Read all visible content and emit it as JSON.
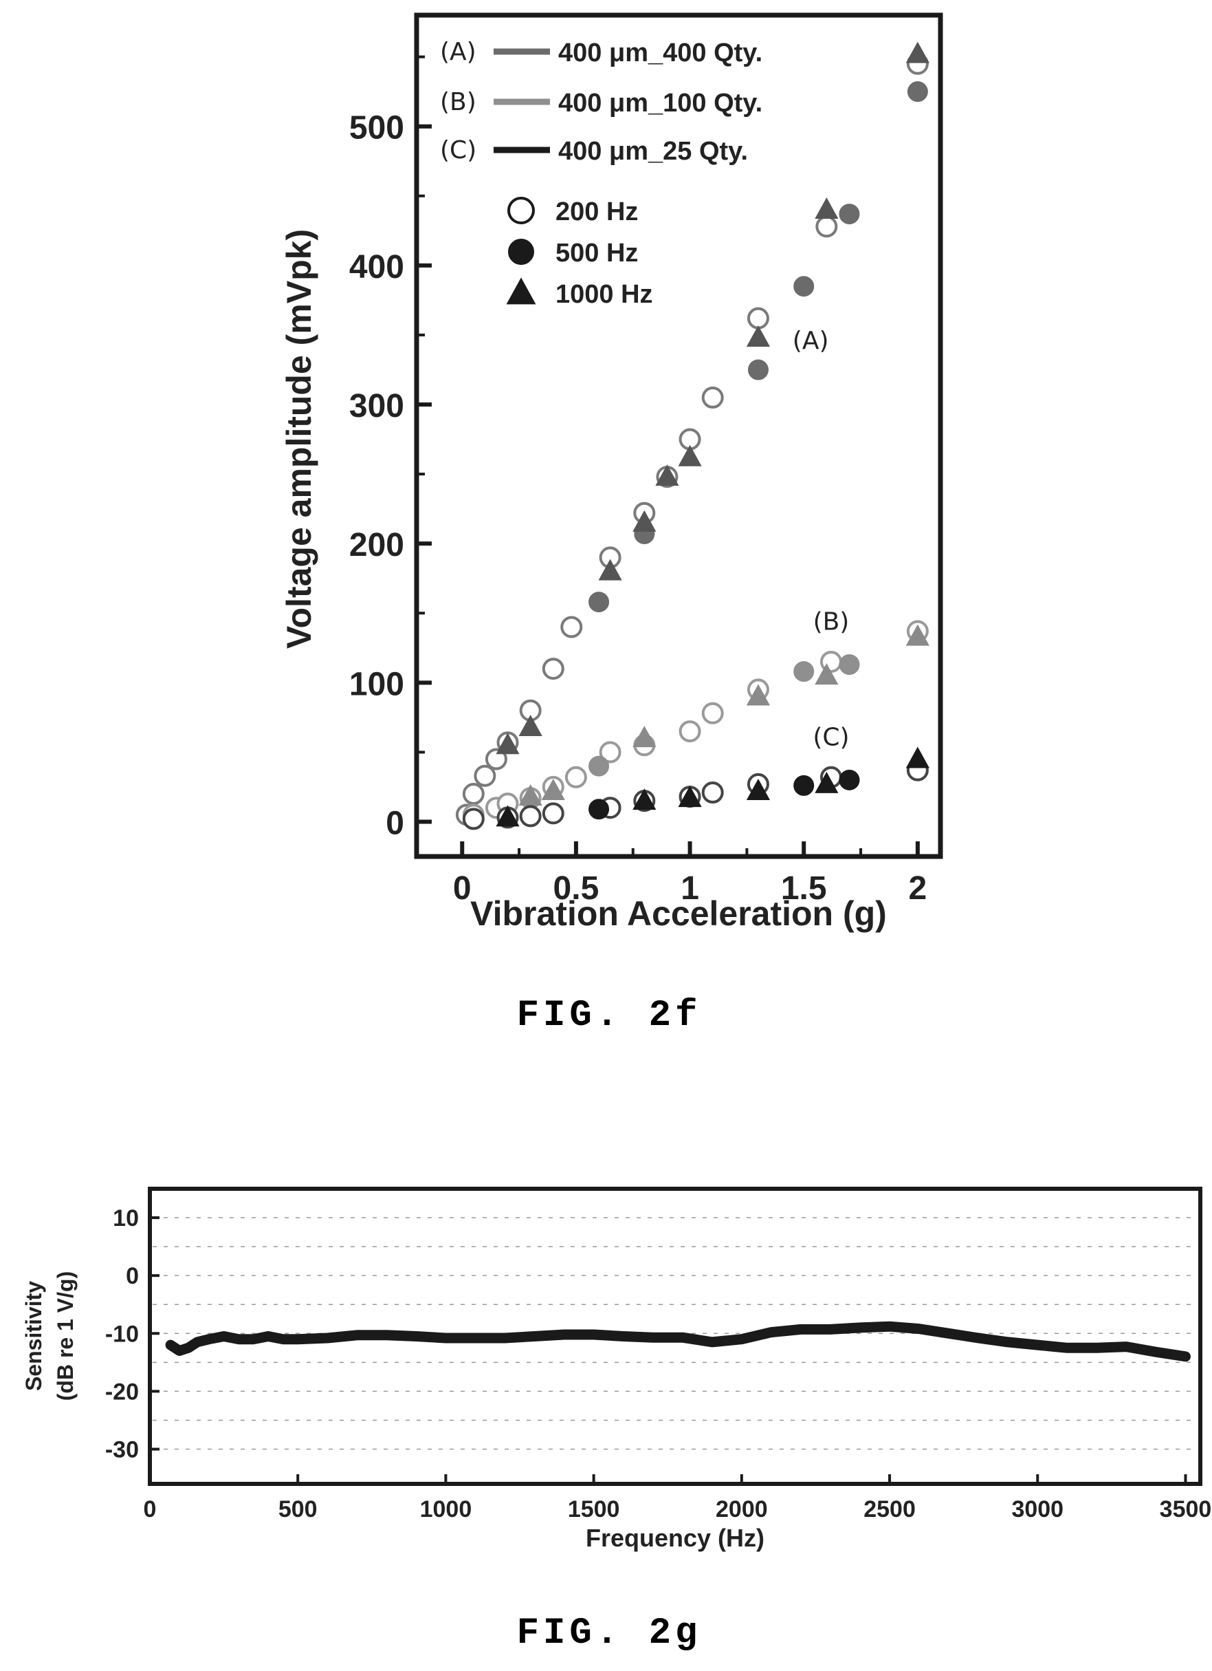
{
  "figures": [
    {
      "caption": "FIG. 2f"
    },
    {
      "caption": "FIG. 2g"
    }
  ],
  "chart_data": [
    {
      "type": "scatter",
      "title": "",
      "xlabel": "Vibration Acceleration (g)",
      "ylabel": "Voltage amplitude  (mVpk)",
      "xlim": [
        -0.2,
        2.1
      ],
      "ylim": [
        -25,
        580
      ],
      "x_ticks": [
        0,
        0.5,
        1,
        1.5,
        2
      ],
      "x_tick_labels": [
        "0",
        "0.5",
        "1",
        "1.5",
        "2"
      ],
      "y_ticks": [
        0,
        100,
        200,
        300,
        400,
        500
      ],
      "y_tick_labels": [
        "0",
        "100",
        "200",
        "300",
        "400",
        "500"
      ],
      "grid": false,
      "legend": {
        "placement": "top-left",
        "lines": [
          {
            "id": "(A)",
            "label": "400 μm_400 Qty.",
            "color": "#6b6b6b"
          },
          {
            "id": "(B)",
            "label": "400 μm_100 Qty.",
            "color": "#8f8f8f"
          },
          {
            "id": "(C)",
            "label": "400 μm_25 Qty.",
            "color": "#1a1a1a"
          }
        ],
        "markers": [
          {
            "label": "200 Hz",
            "marker": "open-circle"
          },
          {
            "label": "500 Hz",
            "marker": "filled-circle"
          },
          {
            "label": "1000 Hz",
            "marker": "filled-triangle"
          }
        ]
      },
      "annotations": [
        {
          "text": "(A)",
          "x": 1.53,
          "y": 340
        },
        {
          "text": "(B)",
          "x": 1.62,
          "y": 138
        },
        {
          "text": "(C)",
          "x": 1.62,
          "y": 55
        }
      ],
      "series": [
        {
          "group": "(A)",
          "frequency": "200 Hz",
          "marker": "open-circle",
          "color": "#7a7a7a",
          "points": [
            [
              0.02,
              5
            ],
            [
              0.05,
              20
            ],
            [
              0.1,
              33
            ],
            [
              0.15,
              45
            ],
            [
              0.2,
              57
            ],
            [
              0.3,
              80
            ],
            [
              0.4,
              110
            ],
            [
              0.48,
              140
            ],
            [
              0.65,
              190
            ],
            [
              0.8,
              222
            ],
            [
              0.9,
              248
            ],
            [
              1.0,
              275
            ],
            [
              1.1,
              305
            ],
            [
              1.3,
              362
            ],
            [
              1.6,
              428
            ],
            [
              2.0,
              545
            ]
          ]
        },
        {
          "group": "(A)",
          "frequency": "500 Hz",
          "marker": "filled-circle",
          "color": "#6b6b6b",
          "points": [
            [
              0.6,
              158
            ],
            [
              0.8,
              207
            ],
            [
              1.3,
              325
            ],
            [
              1.5,
              385
            ],
            [
              1.7,
              437
            ],
            [
              2.0,
              525
            ]
          ]
        },
        {
          "group": "(A)",
          "frequency": "1000 Hz",
          "marker": "filled-triangle",
          "color": "#555555",
          "points": [
            [
              0.2,
              55
            ],
            [
              0.3,
              68
            ],
            [
              0.65,
              180
            ],
            [
              0.8,
              215
            ],
            [
              0.9,
              248
            ],
            [
              1.0,
              262
            ],
            [
              1.3,
              348
            ],
            [
              1.6,
              440
            ],
            [
              2.0,
              552
            ]
          ]
        },
        {
          "group": "(B)",
          "frequency": "200 Hz",
          "marker": "open-circle",
          "color": "#9a9a9a",
          "points": [
            [
              0.05,
              5
            ],
            [
              0.15,
              10
            ],
            [
              0.2,
              13
            ],
            [
              0.3,
              17
            ],
            [
              0.4,
              25
            ],
            [
              0.5,
              32
            ],
            [
              0.65,
              50
            ],
            [
              0.8,
              55
            ],
            [
              1.0,
              65
            ],
            [
              1.1,
              78
            ],
            [
              1.3,
              95
            ],
            [
              1.62,
              115
            ],
            [
              2.0,
              137
            ]
          ]
        },
        {
          "group": "(B)",
          "frequency": "500 Hz",
          "marker": "filled-circle",
          "color": "#8f8f8f",
          "points": [
            [
              0.6,
              40
            ],
            [
              1.5,
              108
            ],
            [
              1.7,
              113
            ]
          ]
        },
        {
          "group": "(B)",
          "frequency": "1000 Hz",
          "marker": "filled-triangle",
          "color": "#8a8a8a",
          "points": [
            [
              0.3,
              18
            ],
            [
              0.4,
              22
            ],
            [
              0.8,
              60
            ],
            [
              1.3,
              90
            ],
            [
              1.6,
              105
            ],
            [
              2.0,
              133
            ]
          ]
        },
        {
          "group": "(C)",
          "frequency": "200 Hz",
          "marker": "open-circle",
          "color": "#444444",
          "points": [
            [
              0.05,
              2
            ],
            [
              0.2,
              3
            ],
            [
              0.3,
              4
            ],
            [
              0.4,
              6
            ],
            [
              0.65,
              10
            ],
            [
              0.8,
              15
            ],
            [
              1.0,
              18
            ],
            [
              1.1,
              21
            ],
            [
              1.3,
              27
            ],
            [
              1.62,
              32
            ],
            [
              2.0,
              37
            ]
          ]
        },
        {
          "group": "(C)",
          "frequency": "500 Hz",
          "marker": "filled-circle",
          "color": "#1a1a1a",
          "points": [
            [
              0.6,
              9
            ],
            [
              1.5,
              26
            ],
            [
              1.7,
              30
            ]
          ]
        },
        {
          "group": "(C)",
          "frequency": "1000 Hz",
          "marker": "filled-triangle",
          "color": "#1a1a1a",
          "points": [
            [
              0.2,
              3
            ],
            [
              0.8,
              15
            ],
            [
              1.0,
              17
            ],
            [
              1.3,
              22
            ],
            [
              1.6,
              27
            ],
            [
              2.0,
              45
            ]
          ]
        }
      ]
    },
    {
      "type": "line",
      "title": "",
      "xlabel": "Frequency (Hz)",
      "ylabel": [
        "Sensitivity",
        "(dB re 1 V/g)"
      ],
      "xlim": [
        0,
        3550
      ],
      "ylim": [
        -36,
        15
      ],
      "x_ticks": [
        0,
        500,
        1000,
        1500,
        2000,
        2500,
        3000,
        3500
      ],
      "x_tick_labels": [
        "0",
        "500",
        "1000",
        "1500",
        "2000",
        "2500",
        "3000",
        "3500"
      ],
      "y_ticks": [
        10,
        0,
        -10,
        -20,
        -30
      ],
      "y_tick_labels": [
        "10",
        "0",
        "-10",
        "-20",
        "-30"
      ],
      "grid": true,
      "series": [
        {
          "color": "#1a1a1a",
          "x": [
            70,
            100,
            130,
            160,
            200,
            250,
            300,
            350,
            400,
            450,
            500,
            600,
            700,
            800,
            900,
            1000,
            1100,
            1200,
            1300,
            1400,
            1500,
            1600,
            1700,
            1800,
            1900,
            2000,
            2100,
            2200,
            2300,
            2400,
            2500,
            2600,
            2700,
            2800,
            2900,
            3000,
            3100,
            3200,
            3300,
            3400,
            3500
          ],
          "y": [
            -12,
            -13,
            -12.5,
            -11.5,
            -11,
            -10.5,
            -11,
            -11,
            -10.5,
            -11,
            -11,
            -10.8,
            -10.3,
            -10.3,
            -10.5,
            -10.8,
            -10.8,
            -10.8,
            -10.5,
            -10.2,
            -10.2,
            -10.5,
            -10.7,
            -10.7,
            -11.5,
            -11,
            -9.8,
            -9.3,
            -9.3,
            -9.0,
            -8.8,
            -9.2,
            -10,
            -10.8,
            -11.5,
            -12,
            -12.5,
            -12.5,
            -12.3,
            -13.2,
            -14
          ]
        }
      ]
    }
  ]
}
